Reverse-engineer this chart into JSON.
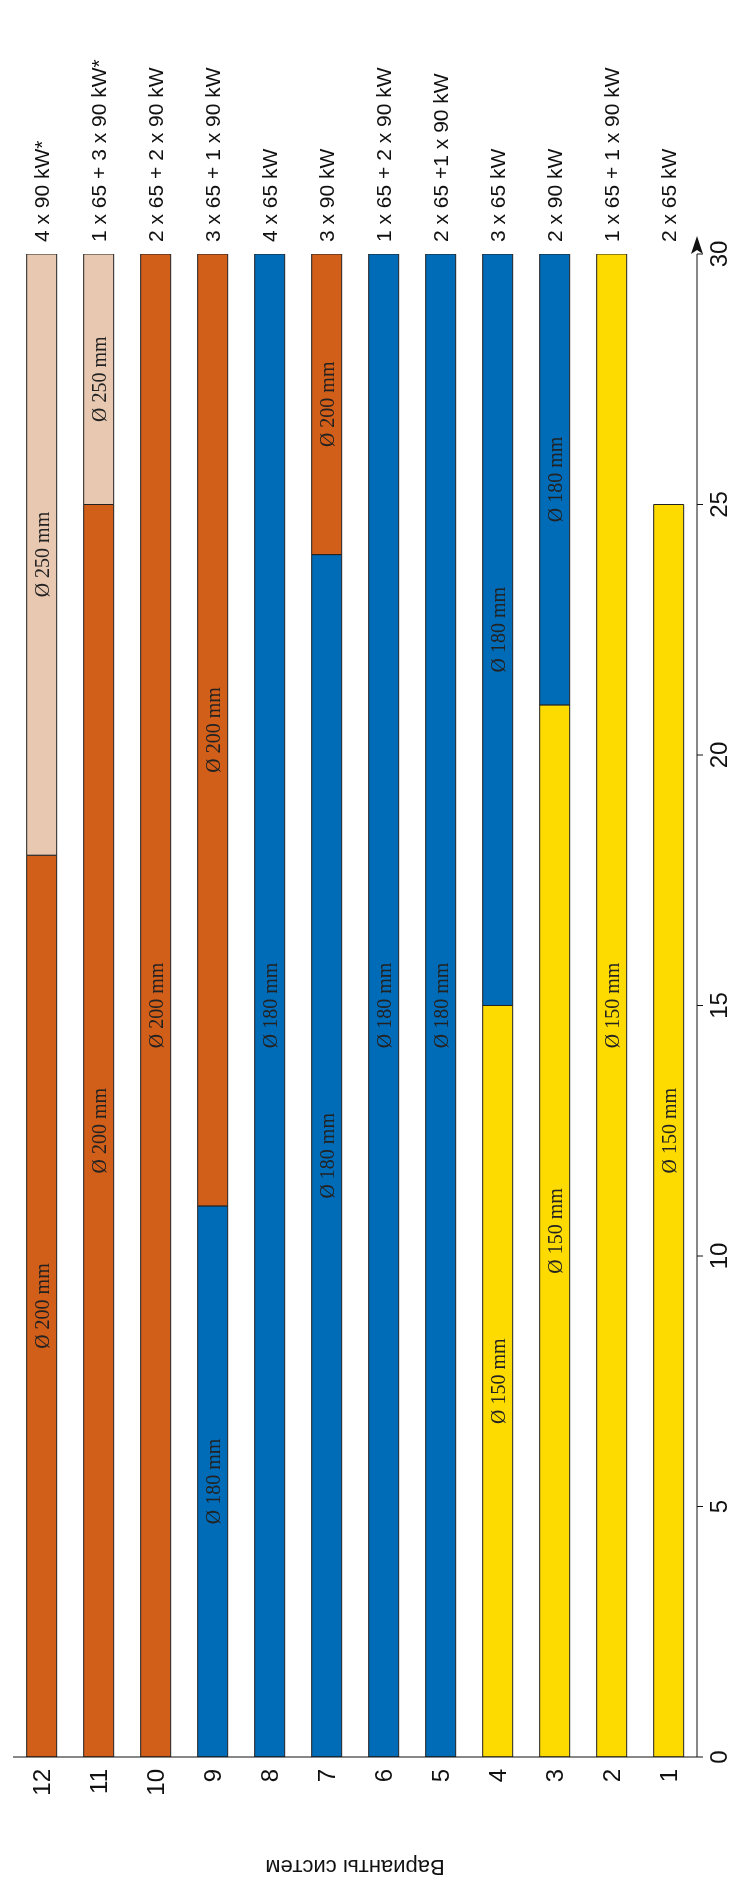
{
  "chart_data": {
    "type": "bar",
    "stacked": true,
    "xlabel": "Варианты систем",
    "categories": [
      "12",
      "11",
      "10",
      "9",
      "8",
      "7",
      "6",
      "5",
      "4",
      "3",
      "2",
      "1"
    ],
    "series": [
      {
        "name": "Ø 150 mm",
        "color": "#fedb00",
        "values": [
          null,
          null,
          null,
          null,
          null,
          null,
          null,
          null,
          15,
          21,
          30,
          25
        ]
      },
      {
        "name": "Ø 180 mm",
        "color": "#006bb7",
        "values": [
          null,
          null,
          null,
          11,
          30,
          24,
          30,
          30,
          15,
          9,
          null,
          null
        ]
      },
      {
        "name": "Ø 200 mm",
        "color": "#d15e19",
        "values": [
          18,
          25,
          30,
          19,
          null,
          6,
          null,
          null,
          null,
          null,
          null,
          null
        ]
      },
      {
        "name": "Ø 250 mm",
        "color": "#e8c8b0",
        "values": [
          12,
          5,
          null,
          null,
          null,
          null,
          null,
          null,
          null,
          null,
          null,
          null
        ]
      }
    ],
    "ylim": [
      0,
      30
    ],
    "yticks": [
      0,
      5,
      10,
      15,
      20,
      25,
      30
    ],
    "grid": false,
    "legend": false,
    "annotations": [
      "4 x 90 kW*",
      "1 x 65 + 3 x 90 kW*",
      "2 x 65 + 2 x 90 kW",
      "3 x 65 + 1 x 90 kW",
      "4 x 65 kW",
      "3 x 90 kW",
      "1 x 65 + 2 x 90 kW",
      "2 x 65 +1 x 90 kW",
      "3 x 65 kW",
      "2 x 90 kW",
      "1 x 65 + 1 x 90 kW",
      "2 x 65 kW"
    ]
  }
}
